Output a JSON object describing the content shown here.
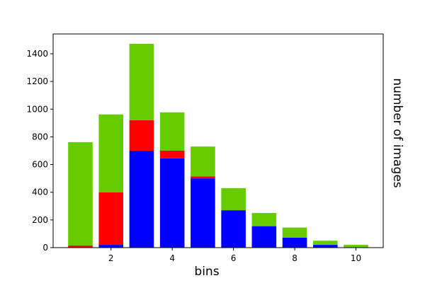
{
  "chart_data": {
    "type": "stacked_bar",
    "x": [
      1,
      2,
      3,
      4,
      5,
      6,
      7,
      8,
      9,
      10
    ],
    "series": [
      {
        "color": "#0000ff",
        "values": [
          2,
          20,
          700,
          645,
          500,
          270,
          155,
          72,
          20,
          0
        ]
      },
      {
        "color": "#ff0000",
        "values": [
          13,
          380,
          220,
          55,
          15,
          0,
          0,
          0,
          0,
          0
        ]
      },
      {
        "color": "#66cc00",
        "values": [
          747,
          562,
          552,
          277,
          215,
          160,
          95,
          73,
          30,
          20
        ]
      }
    ],
    "xlabel": "bins",
    "ylabel": "number of images",
    "xlim": [
      0.11,
      10.89
    ],
    "xticks": [
      2,
      4,
      6,
      8,
      10
    ],
    "ylim": [
      0,
      1543
    ],
    "yticks": [
      0,
      200,
      400,
      600,
      800,
      1000,
      1200,
      1400
    ]
  }
}
